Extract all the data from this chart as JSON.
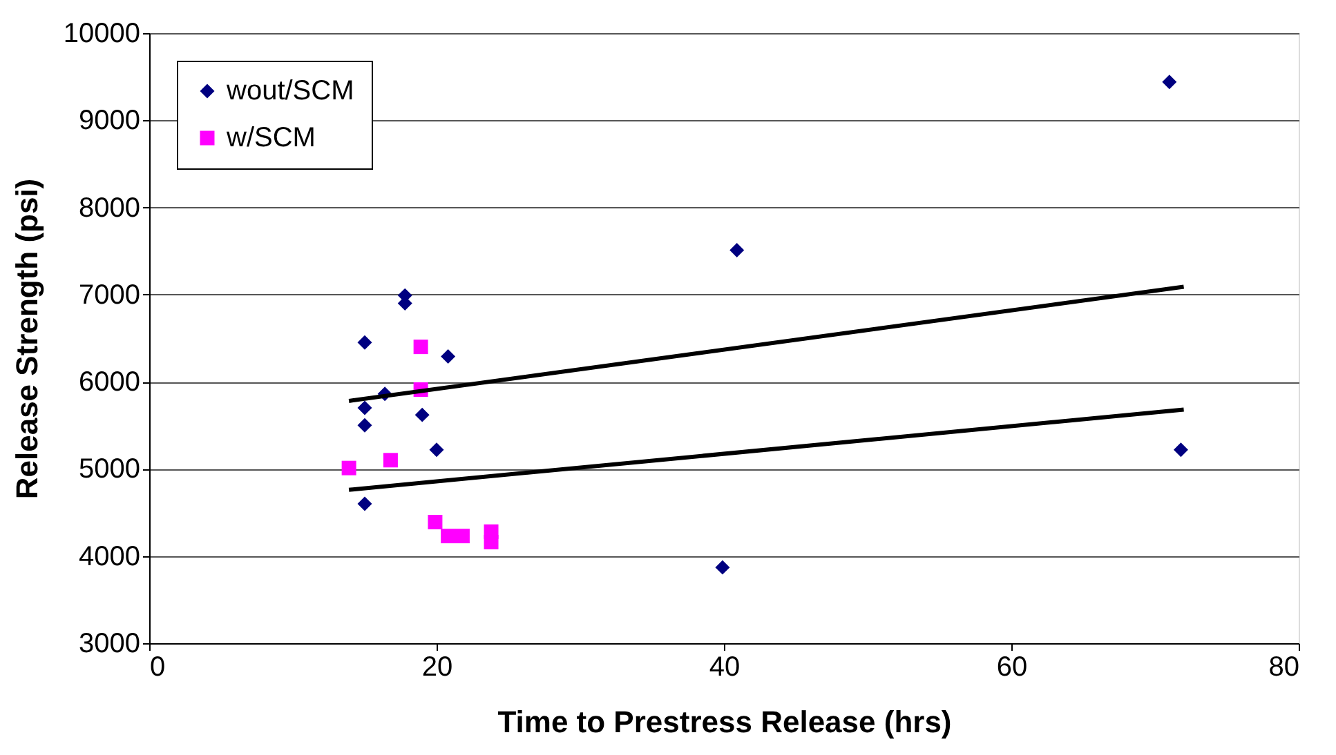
{
  "chart_data": {
    "type": "scatter",
    "xlabel": "Time to Prestress Release (hrs)",
    "ylabel": "Release Strength (psi)",
    "xlim": [
      0,
      80
    ],
    "xticks": [
      0,
      20,
      40,
      60,
      80
    ],
    "ylim": [
      3000,
      10000
    ],
    "yticks": [
      3000,
      4000,
      5000,
      6000,
      7000,
      8000,
      9000,
      10000
    ],
    "grid": "y",
    "legend": "top left",
    "series": [
      {
        "name": "wout/SCM",
        "color": "#000080",
        "marker": "diamond",
        "x": [
          15,
          15,
          15,
          15,
          16.4,
          17.8,
          17.8,
          19,
          20,
          20.8,
          39.9,
          40.9,
          71,
          71.8
        ],
        "values": [
          6450,
          5700,
          5500,
          4600,
          5860,
          6990,
          6900,
          5620,
          5220,
          6290,
          3870,
          7510,
          9440,
          5220
        ]
      },
      {
        "name": "w/SCM",
        "color": "#ff00ff",
        "marker": "square",
        "x": [
          13.9,
          16.8,
          18.9,
          18.9,
          19.9,
          20.8,
          21.8,
          23.8,
          23.8
        ],
        "values": [
          5010,
          5100,
          6400,
          5910,
          4390,
          4230,
          4230,
          4280,
          4160
        ]
      },
      {
        "type": "line",
        "color": "#000000",
        "line_style": "solid",
        "marker": "none",
        "x": [
          13.9,
          72
        ],
        "values": [
          5780,
          7090
        ]
      },
      {
        "type": "line",
        "color": "#000000",
        "line_style": "solid",
        "marker": "none",
        "x": [
          13.9,
          72
        ],
        "values": [
          4760,
          5680
        ]
      }
    ]
  }
}
